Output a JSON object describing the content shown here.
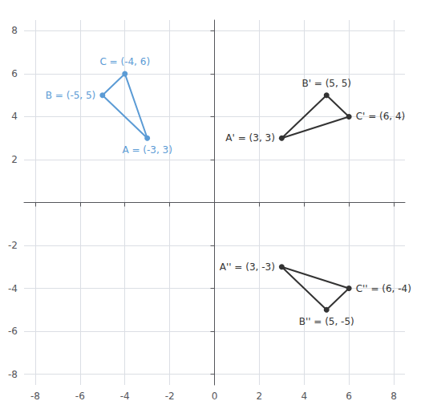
{
  "chart_data": {
    "type": "line",
    "xlim": [
      -8.5,
      8.5
    ],
    "ylim": [
      -8.5,
      8.5
    ],
    "xticks": [
      -8,
      -6,
      -4,
      -2,
      0,
      2,
      4,
      6,
      8
    ],
    "yticks": [
      -8,
      -6,
      -4,
      -2,
      2,
      4,
      6,
      8
    ],
    "grid": true,
    "series": [
      {
        "color": "#5b9bd5",
        "marker": "circle",
        "x": [
          -3,
          -5,
          -4,
          -3
        ],
        "y": [
          3,
          5,
          6,
          3
        ],
        "point_labels": [
          "A = (-3, 3)",
          "B = (-5, 5)",
          "C = (-4, 6)",
          null
        ]
      },
      {
        "color": "#333333",
        "marker": "circle",
        "x": [
          3,
          5,
          6,
          3
        ],
        "y": [
          3,
          5,
          4,
          3
        ],
        "point_labels": [
          "A' = (3, 3)",
          "B' = (5, 5)",
          "C' = (6, 4)",
          null
        ]
      },
      {
        "color": "#333333",
        "marker": "circle",
        "x": [
          3,
          5,
          6,
          3
        ],
        "y": [
          -3,
          -5,
          -4,
          -3
        ],
        "point_labels": [
          "A'' = (3, -3)",
          "B'' = (5, -5)",
          "C'' = (6, -4)",
          null
        ]
      }
    ]
  }
}
